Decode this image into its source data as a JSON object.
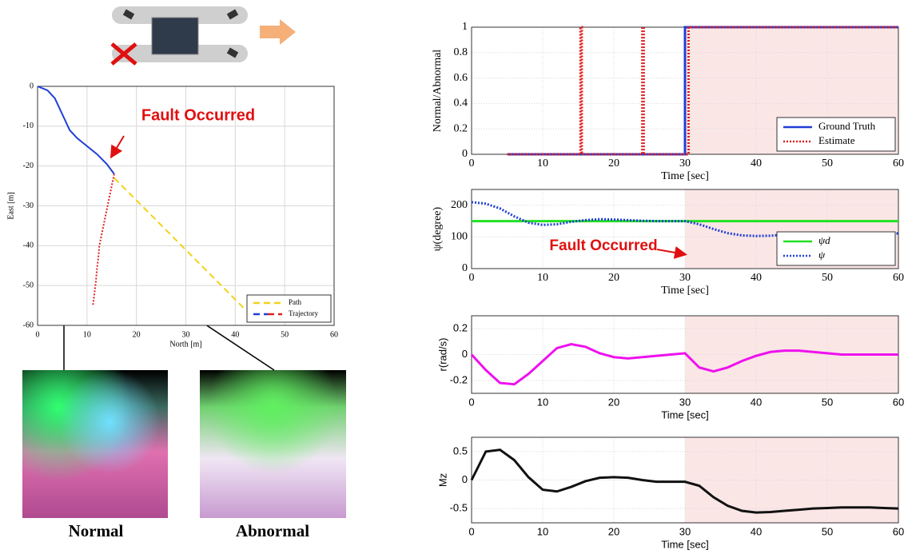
{
  "chart_data": [
    {
      "type": "line",
      "xlabel": "North [m]",
      "ylabel": "East [m]",
      "xlim": [
        0,
        60
      ],
      "ylim": [
        -60,
        0
      ],
      "xticks": [
        0,
        10,
        20,
        30,
        40,
        50,
        60
      ],
      "yticks": [
        -60,
        -50,
        -40,
        -30,
        -20,
        -10,
        0
      ],
      "grid": true,
      "legend": "lower right",
      "annotation": "Fault Occurred",
      "series": [
        {
          "name": "Path",
          "color": "#f2d21b",
          "style": "dashed",
          "x": [
            15.5,
            42
          ],
          "values": [
            -23,
            -56
          ]
        },
        {
          "name": "Trajectory",
          "style": "solid",
          "segments": [
            {
              "color": "#1f3fd6",
              "style": "solid",
              "x": [
                0,
                2,
                3.5,
                5,
                6.5,
                8,
                10,
                12,
                14,
                15.5
              ],
              "values": [
                0,
                -1,
                -3,
                -7,
                -11,
                -13,
                -15,
                -17,
                -19.5,
                -22
              ]
            },
            {
              "color": "#e02020",
              "style": "dotted",
              "x": [
                15.5,
                15,
                14.5,
                14,
                13.5,
                13,
                12.5,
                12.3,
                12,
                11.8,
                11.5,
                11.2
              ],
              "values": [
                -22,
                -25,
                -28,
                -31,
                -34,
                -37,
                -40,
                -43,
                -46,
                -49,
                -52,
                -55
              ]
            }
          ]
        }
      ]
    },
    {
      "type": "line",
      "xlabel": "Time  [sec]",
      "ylabel": "Normal/Abnormal",
      "xlim": [
        0,
        60
      ],
      "ylim": [
        0,
        1
      ],
      "xticks": [
        0,
        10,
        20,
        30,
        40,
        50,
        60
      ],
      "yticks": [
        0,
        0.2,
        0.4,
        0.6,
        0.8,
        1
      ],
      "grid": true,
      "legend": "lower right",
      "shade": [
        30,
        60
      ],
      "series": [
        {
          "name": "Ground Truth",
          "color": "#1f3fd6",
          "style": "solid",
          "x": [
            5,
            30,
            30,
            60
          ],
          "values": [
            0,
            0,
            1,
            1
          ]
        },
        {
          "name": "Estimate",
          "color": "#e02020",
          "style": "dotted",
          "x": [
            5,
            15.3,
            15.3,
            15.5,
            15.5,
            24,
            24,
            24.2,
            24.2,
            30.5,
            30.5,
            60
          ],
          "values": [
            0,
            0,
            1,
            1,
            0,
            0,
            1,
            1,
            0,
            0,
            1,
            1
          ]
        }
      ]
    },
    {
      "type": "line",
      "xlabel": "Time [sec]",
      "ylabel": "ψ(degree)",
      "xlim": [
        0,
        60
      ],
      "ylim": [
        0,
        250
      ],
      "xticks": [
        0,
        10,
        20,
        30,
        40,
        50,
        60
      ],
      "yticks": [
        0,
        100,
        200
      ],
      "grid": true,
      "legend": "lower right",
      "shade": [
        30,
        60
      ],
      "annotation": "Fault Occurred",
      "x": [
        0,
        2,
        4,
        6,
        8,
        10,
        12,
        14,
        16,
        18,
        20,
        22,
        24,
        26,
        28,
        30,
        32,
        34,
        36,
        38,
        40,
        42,
        44,
        46,
        48,
        50,
        52,
        54,
        56,
        58,
        60
      ],
      "series": [
        {
          "name": "ψd",
          "color": "#22e022",
          "style": "solid",
          "values": [
            150,
            150,
            150,
            150,
            150,
            150,
            150,
            150,
            150,
            150,
            150,
            150,
            150,
            150,
            150,
            150,
            150,
            150,
            150,
            150,
            150,
            150,
            150,
            150,
            150,
            150,
            150,
            150,
            150,
            150,
            150
          ]
        },
        {
          "name": "ψ",
          "color": "#1f3fd6",
          "style": "dotted",
          "values": [
            210,
            205,
            190,
            165,
            145,
            138,
            140,
            148,
            153,
            156,
            155,
            153,
            151,
            150,
            150,
            150,
            140,
            125,
            112,
            105,
            103,
            104,
            107,
            110,
            112,
            113,
            113,
            112,
            112,
            111,
            111
          ]
        }
      ]
    },
    {
      "type": "line",
      "xlabel": "Time [sec]",
      "ylabel": "r(rad/s)",
      "xlim": [
        0,
        60
      ],
      "ylim": [
        -0.3,
        0.3
      ],
      "xticks": [
        0,
        10,
        20,
        30,
        40,
        50,
        60
      ],
      "yticks": [
        -0.2,
        0,
        0.2
      ],
      "grid": true,
      "shade": [
        30,
        60
      ],
      "x": [
        0,
        2,
        4,
        6,
        8,
        10,
        12,
        14,
        16,
        18,
        20,
        22,
        24,
        26,
        28,
        30,
        32,
        34,
        36,
        38,
        40,
        42,
        44,
        46,
        48,
        50,
        52,
        54,
        56,
        58,
        60
      ],
      "series": [
        {
          "color": "#ee11ee",
          "style": "solid",
          "values": [
            0,
            -0.12,
            -0.22,
            -0.23,
            -0.15,
            -0.05,
            0.05,
            0.08,
            0.06,
            0.01,
            -0.02,
            -0.03,
            -0.02,
            -0.01,
            0,
            0.01,
            -0.1,
            -0.13,
            -0.1,
            -0.05,
            -0.01,
            0.02,
            0.03,
            0.03,
            0.02,
            0.01,
            0,
            0,
            0,
            0,
            0
          ]
        }
      ]
    },
    {
      "type": "line",
      "xlabel": "Time [sec]",
      "ylabel": "Mz",
      "xlim": [
        0,
        60
      ],
      "ylim": [
        -0.75,
        0.75
      ],
      "xticks": [
        0,
        10,
        20,
        30,
        40,
        50,
        60
      ],
      "yticks": [
        -0.5,
        0,
        0.5
      ],
      "grid": true,
      "shade": [
        30,
        60
      ],
      "x": [
        0,
        2,
        4,
        6,
        8,
        10,
        12,
        14,
        16,
        18,
        20,
        22,
        24,
        26,
        28,
        30,
        32,
        34,
        36,
        38,
        40,
        42,
        44,
        46,
        48,
        50,
        52,
        54,
        56,
        58,
        60
      ],
      "series": [
        {
          "color": "#111111",
          "style": "solid",
          "values": [
            0,
            0.5,
            0.53,
            0.35,
            0.05,
            -0.17,
            -0.2,
            -0.12,
            -0.02,
            0.04,
            0.05,
            0.04,
            0,
            -0.03,
            -0.03,
            -0.03,
            -0.1,
            -0.3,
            -0.45,
            -0.54,
            -0.57,
            -0.56,
            -0.54,
            -0.52,
            -0.5,
            -0.49,
            -0.48,
            -0.48,
            -0.48,
            -0.49,
            -0.5
          ]
        }
      ]
    }
  ],
  "images": {
    "normal_label": "Normal",
    "abnormal_label": "Abnormal"
  }
}
